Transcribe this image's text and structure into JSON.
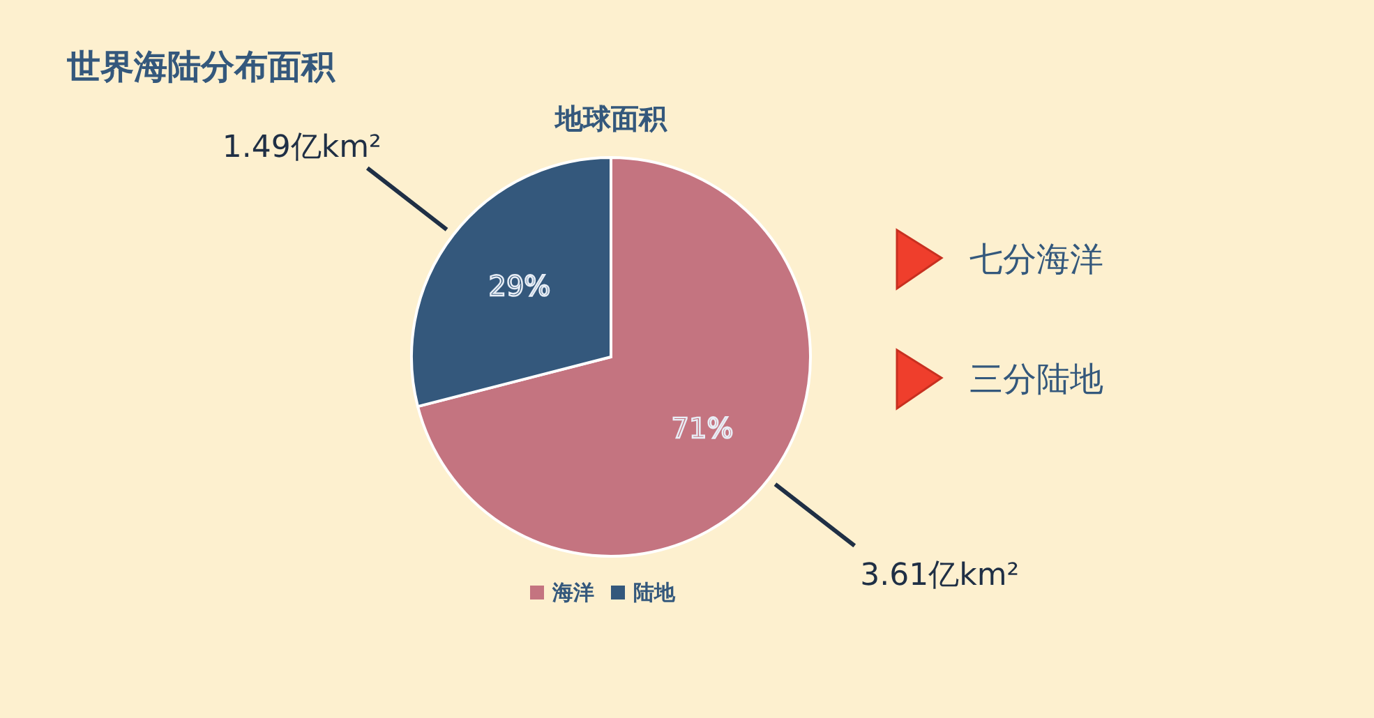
{
  "chart_data": {
    "type": "pie",
    "title": "世界海陆分布面积",
    "subtitle": "地球面积",
    "categories": [
      "海洋",
      "陆地"
    ],
    "values": [
      71,
      29
    ],
    "colors": [
      "#c47480",
      "#34587c"
    ],
    "value_labels": [
      "71%",
      "29%"
    ],
    "legend": "bottom",
    "annotations": [
      {
        "text": "1.49亿km²",
        "x": "陆地"
      },
      {
        "text": "3.61亿km²",
        "x": "海洋"
      },
      "七分海洋",
      "三分陆地"
    ]
  }
}
